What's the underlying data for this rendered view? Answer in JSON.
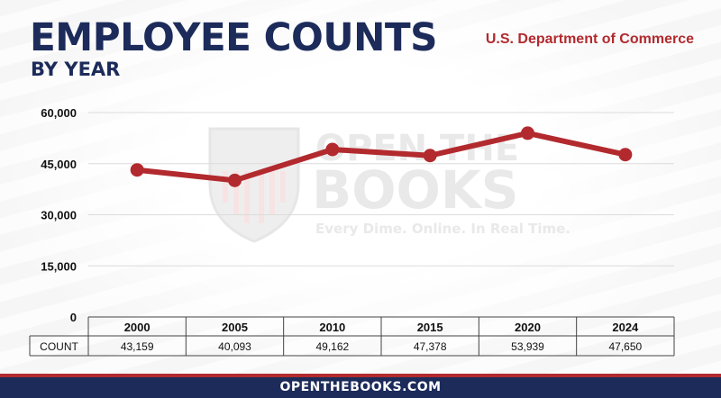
{
  "header": {
    "title": "EMPLOYEE COUNTS",
    "subtitle": "BY YEAR",
    "agency": "U.S. Department of Commerce"
  },
  "watermark": {
    "line1": "OPEN THE",
    "line2": "BOOKS",
    "tagline": "Every Dime. Online. In Real Time."
  },
  "footer": {
    "text": "OPENTHEBOOKS.COM"
  },
  "colors": {
    "navy": "#1c2b5a",
    "red": "#b22a2e"
  },
  "chart_data": {
    "type": "line",
    "categories": [
      "2000",
      "2005",
      "2010",
      "2015",
      "2020",
      "2024"
    ],
    "values": [
      43159,
      40093,
      49162,
      47378,
      53939,
      47650
    ],
    "value_labels": [
      "43,159",
      "40,093",
      "49,162",
      "47,378",
      "53,939",
      "47,650"
    ],
    "yticks": [
      0,
      15000,
      30000,
      45000,
      60000
    ],
    "ytick_labels": [
      "0",
      "15,000",
      "30,000",
      "45,000",
      "60,000"
    ],
    "ylim": [
      0,
      60000
    ],
    "row_label": "COUNT",
    "grid": true
  }
}
